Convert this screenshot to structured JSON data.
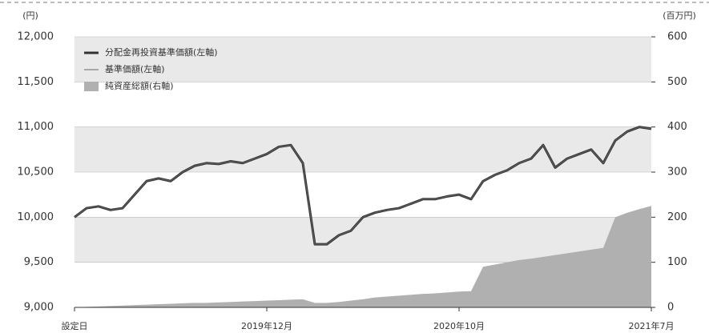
{
  "chart_data": {
    "type": "line",
    "ylabel": "(円)",
    "y2label": "(百万円)",
    "categories": [
      "設定日",
      null,
      null,
      null,
      null,
      null,
      null,
      null,
      null,
      null,
      null,
      null,
      null,
      null,
      null,
      null,
      "2019年12月",
      null,
      null,
      null,
      null,
      null,
      null,
      null,
      null,
      null,
      null,
      null,
      null,
      null,
      null,
      null,
      "2020年10月",
      null,
      null,
      null,
      null,
      null,
      null,
      null,
      null,
      null,
      null,
      null,
      null,
      null,
      null,
      null,
      "2021年7月"
    ],
    "series": [
      {
        "name": "分配金再投資基準価額(左軸)",
        "type": "line",
        "color": "#333333",
        "width": 3,
        "values": [
          10000,
          10100,
          10120,
          10080,
          10100,
          10250,
          10400,
          10430,
          10400,
          10500,
          10570,
          10600,
          10590,
          10620,
          10600,
          10650,
          10700,
          10780,
          10800,
          10600,
          9700,
          9700,
          9800,
          9850,
          10000,
          10050,
          10080,
          10100,
          10150,
          10200,
          10200,
          10230,
          10250,
          10200,
          10400,
          10470,
          10520,
          10600,
          10650,
          10800,
          10550,
          10650,
          10700,
          10750,
          10600,
          10850,
          10950,
          11000,
          10980
        ]
      },
      {
        "name": "基準価額(左軸)",
        "type": "line",
        "color": "#666666",
        "width": 1,
        "values": [
          10000,
          10100,
          10120,
          10080,
          10100,
          10250,
          10400,
          10430,
          10400,
          10500,
          10570,
          10600,
          10590,
          10620,
          10600,
          10650,
          10700,
          10780,
          10800,
          10600,
          9700,
          9700,
          9800,
          9850,
          10000,
          10050,
          10080,
          10100,
          10150,
          10200,
          10200,
          10230,
          10250,
          10200,
          10400,
          10470,
          10520,
          10600,
          10650,
          10800,
          10550,
          10650,
          10700,
          10750,
          10600,
          10850,
          10950,
          11000,
          10980
        ]
      },
      {
        "name": "純資産総額(右軸)",
        "type": "area",
        "axis": "y2",
        "color": "#b0b0b0",
        "values": [
          0,
          1,
          2,
          3,
          4,
          5,
          6,
          7,
          8,
          9,
          10,
          10,
          11,
          12,
          13,
          14,
          15,
          16,
          17,
          18,
          10,
          10,
          12,
          15,
          18,
          22,
          24,
          26,
          28,
          30,
          31,
          33,
          35,
          36,
          90,
          95,
          100,
          105,
          108,
          112,
          116,
          120,
          124,
          128,
          132,
          200,
          210,
          218,
          225
        ]
      }
    ],
    "ylim": [
      9000,
      12000
    ],
    "yticks": [
      {
        "value": 9000,
        "label": "9,000"
      },
      {
        "value": 9500,
        "label": "9,500"
      },
      {
        "value": 10000,
        "label": "10,000"
      },
      {
        "value": 10500,
        "label": "10,500"
      },
      {
        "value": 11000,
        "label": "11,000"
      },
      {
        "value": 11500,
        "label": "11,500"
      },
      {
        "value": 12000,
        "label": "12,000"
      }
    ],
    "y2lim": [
      0,
      600
    ],
    "y2ticks": [
      0,
      100,
      200,
      300,
      400,
      500,
      600
    ],
    "band_color": "#e9e9e9",
    "legend": "top-left"
  }
}
